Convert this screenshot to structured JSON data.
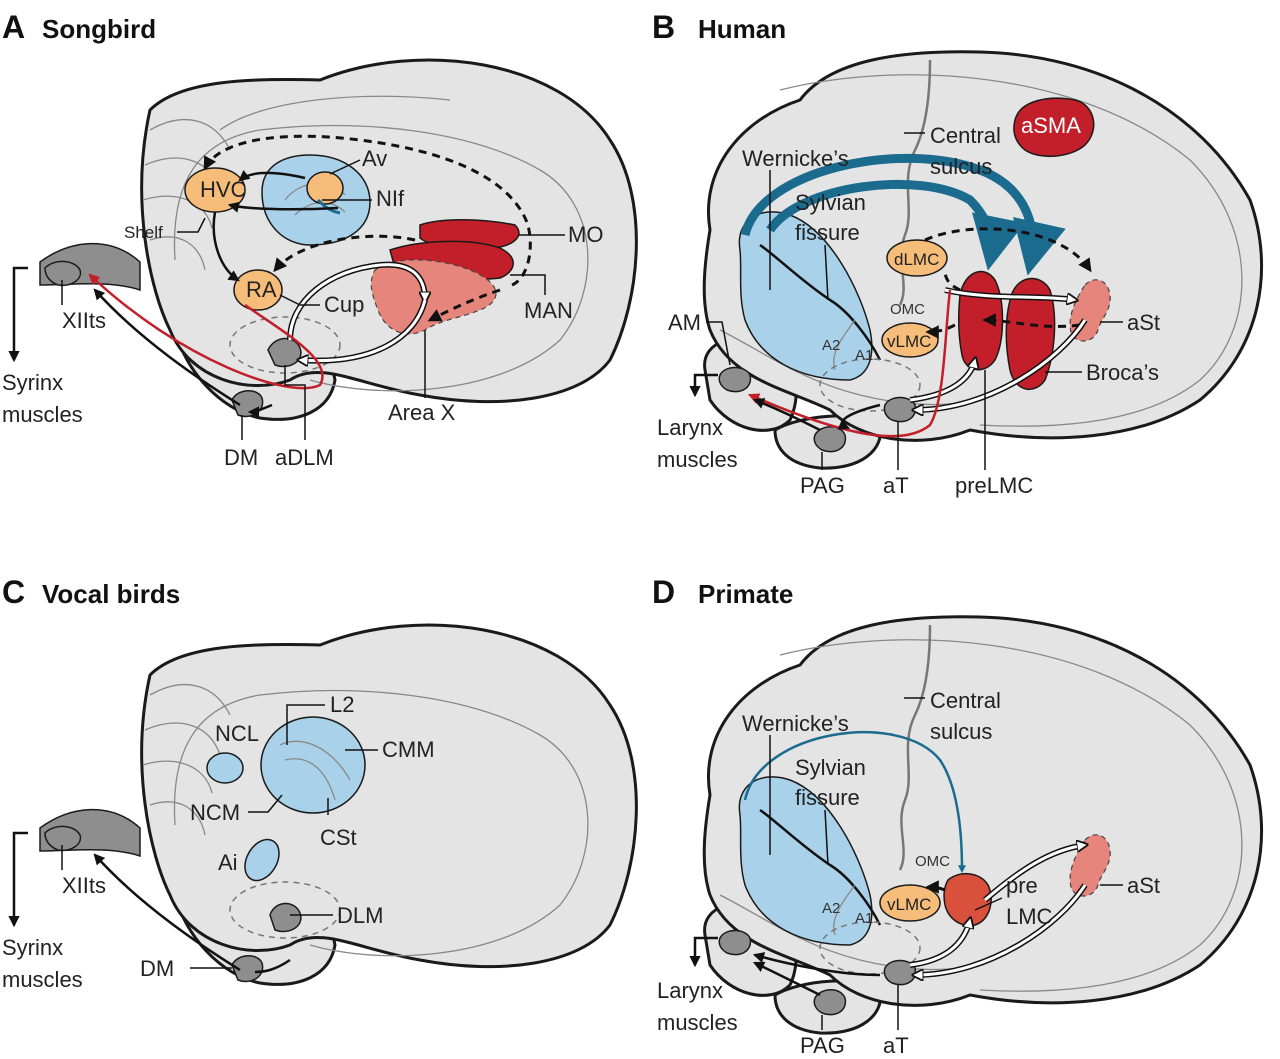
{
  "panels": {
    "a": {
      "letter": "A",
      "title": "Songbird",
      "labels": {
        "hvc": "HVC",
        "av": "Av",
        "nif": "NIf",
        "shelf": "Shelf",
        "ra": "RA",
        "cup": "Cup",
        "mo": "MO",
        "man": "MAN",
        "xiits": "XIIts",
        "syrinx_1": "Syrinx",
        "syrinx_2": "muscles",
        "dm": "DM",
        "adlm": "aDLM",
        "area_x": "Area X"
      }
    },
    "b": {
      "letter": "B",
      "title": "Human",
      "labels": {
        "central_1": "Central",
        "central_2": "sulcus",
        "asma": "aSMA",
        "wernicke": "Wernicke’s",
        "sylvian_1": "Sylvian",
        "sylvian_2": "fissure",
        "dlmc": "dLMC",
        "omc": "OMC",
        "vlmc": "vLMC",
        "a2": "A2",
        "a1": "A1",
        "am": "AM",
        "ast": "aSt",
        "brocas": "Broca’s",
        "larynx_1": "Larynx",
        "larynx_2": "muscles",
        "pag": "PAG",
        "at": "aT",
        "prelmc": "preLMC"
      }
    },
    "c": {
      "letter": "C",
      "title": "Vocal birds",
      "labels": {
        "l2": "L2",
        "ncl": "NCL",
        "cmm": "CMM",
        "ncm": "NCM",
        "cst": "CSt",
        "ai": "Ai",
        "dlm": "DLM",
        "xiits": "XIIts",
        "syrinx_1": "Syrinx",
        "syrinx_2": "muscles",
        "dm": "DM"
      }
    },
    "d": {
      "letter": "D",
      "title": "Primate",
      "labels": {
        "central_1": "Central",
        "central_2": "sulcus",
        "wernicke": "Wernicke’s",
        "sylvian_1": "Sylvian",
        "sylvian_2": "fissure",
        "omc": "OMC",
        "vlmc": "vLMC",
        "pre": "pre",
        "lmc": "LMC",
        "a2": "A2",
        "a1": "A1",
        "ast": "aSt",
        "larynx_1": "Larynx",
        "larynx_2": "muscles",
        "pag": "PAG",
        "at": "aT"
      }
    }
  },
  "colors": {
    "brain": "#e4e4e4",
    "auditory": "#a9d2ea",
    "motor_nucleus": "#f6bc7a",
    "premotor": "#c31f2a",
    "striatal": "#e5857b",
    "thalamic": "#8e8e8e",
    "projection_red": "#c31f2a",
    "projection_blue": "#1b6b8f"
  }
}
